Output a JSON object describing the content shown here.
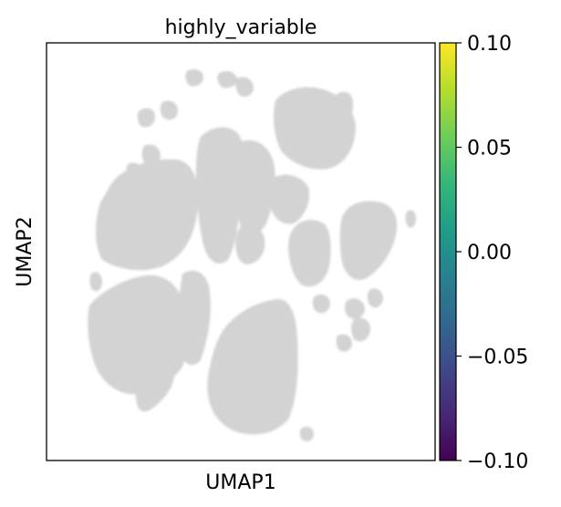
{
  "chart_data": {
    "type": "scatter",
    "title": "highly_variable",
    "xlabel": "UMAP1",
    "ylabel": "UMAP2",
    "point_color": "#d3d3d3",
    "x_ticks": [],
    "y_ticks": [],
    "colorbar": {
      "colormap": "viridis",
      "range": [
        -0.1,
        0.1
      ],
      "ticks": [
        0.1,
        0.05,
        0.0,
        -0.05,
        -0.1
      ],
      "tick_labels": [
        "0.10",
        "0.05",
        "0.00",
        "−0.05",
        "−0.10"
      ],
      "colors": [
        "#440154",
        "#482878",
        "#3e4989",
        "#31688e",
        "#26828e",
        "#1f9e89",
        "#35b779",
        "#6ece58",
        "#b5de2b",
        "#fde725"
      ]
    }
  }
}
